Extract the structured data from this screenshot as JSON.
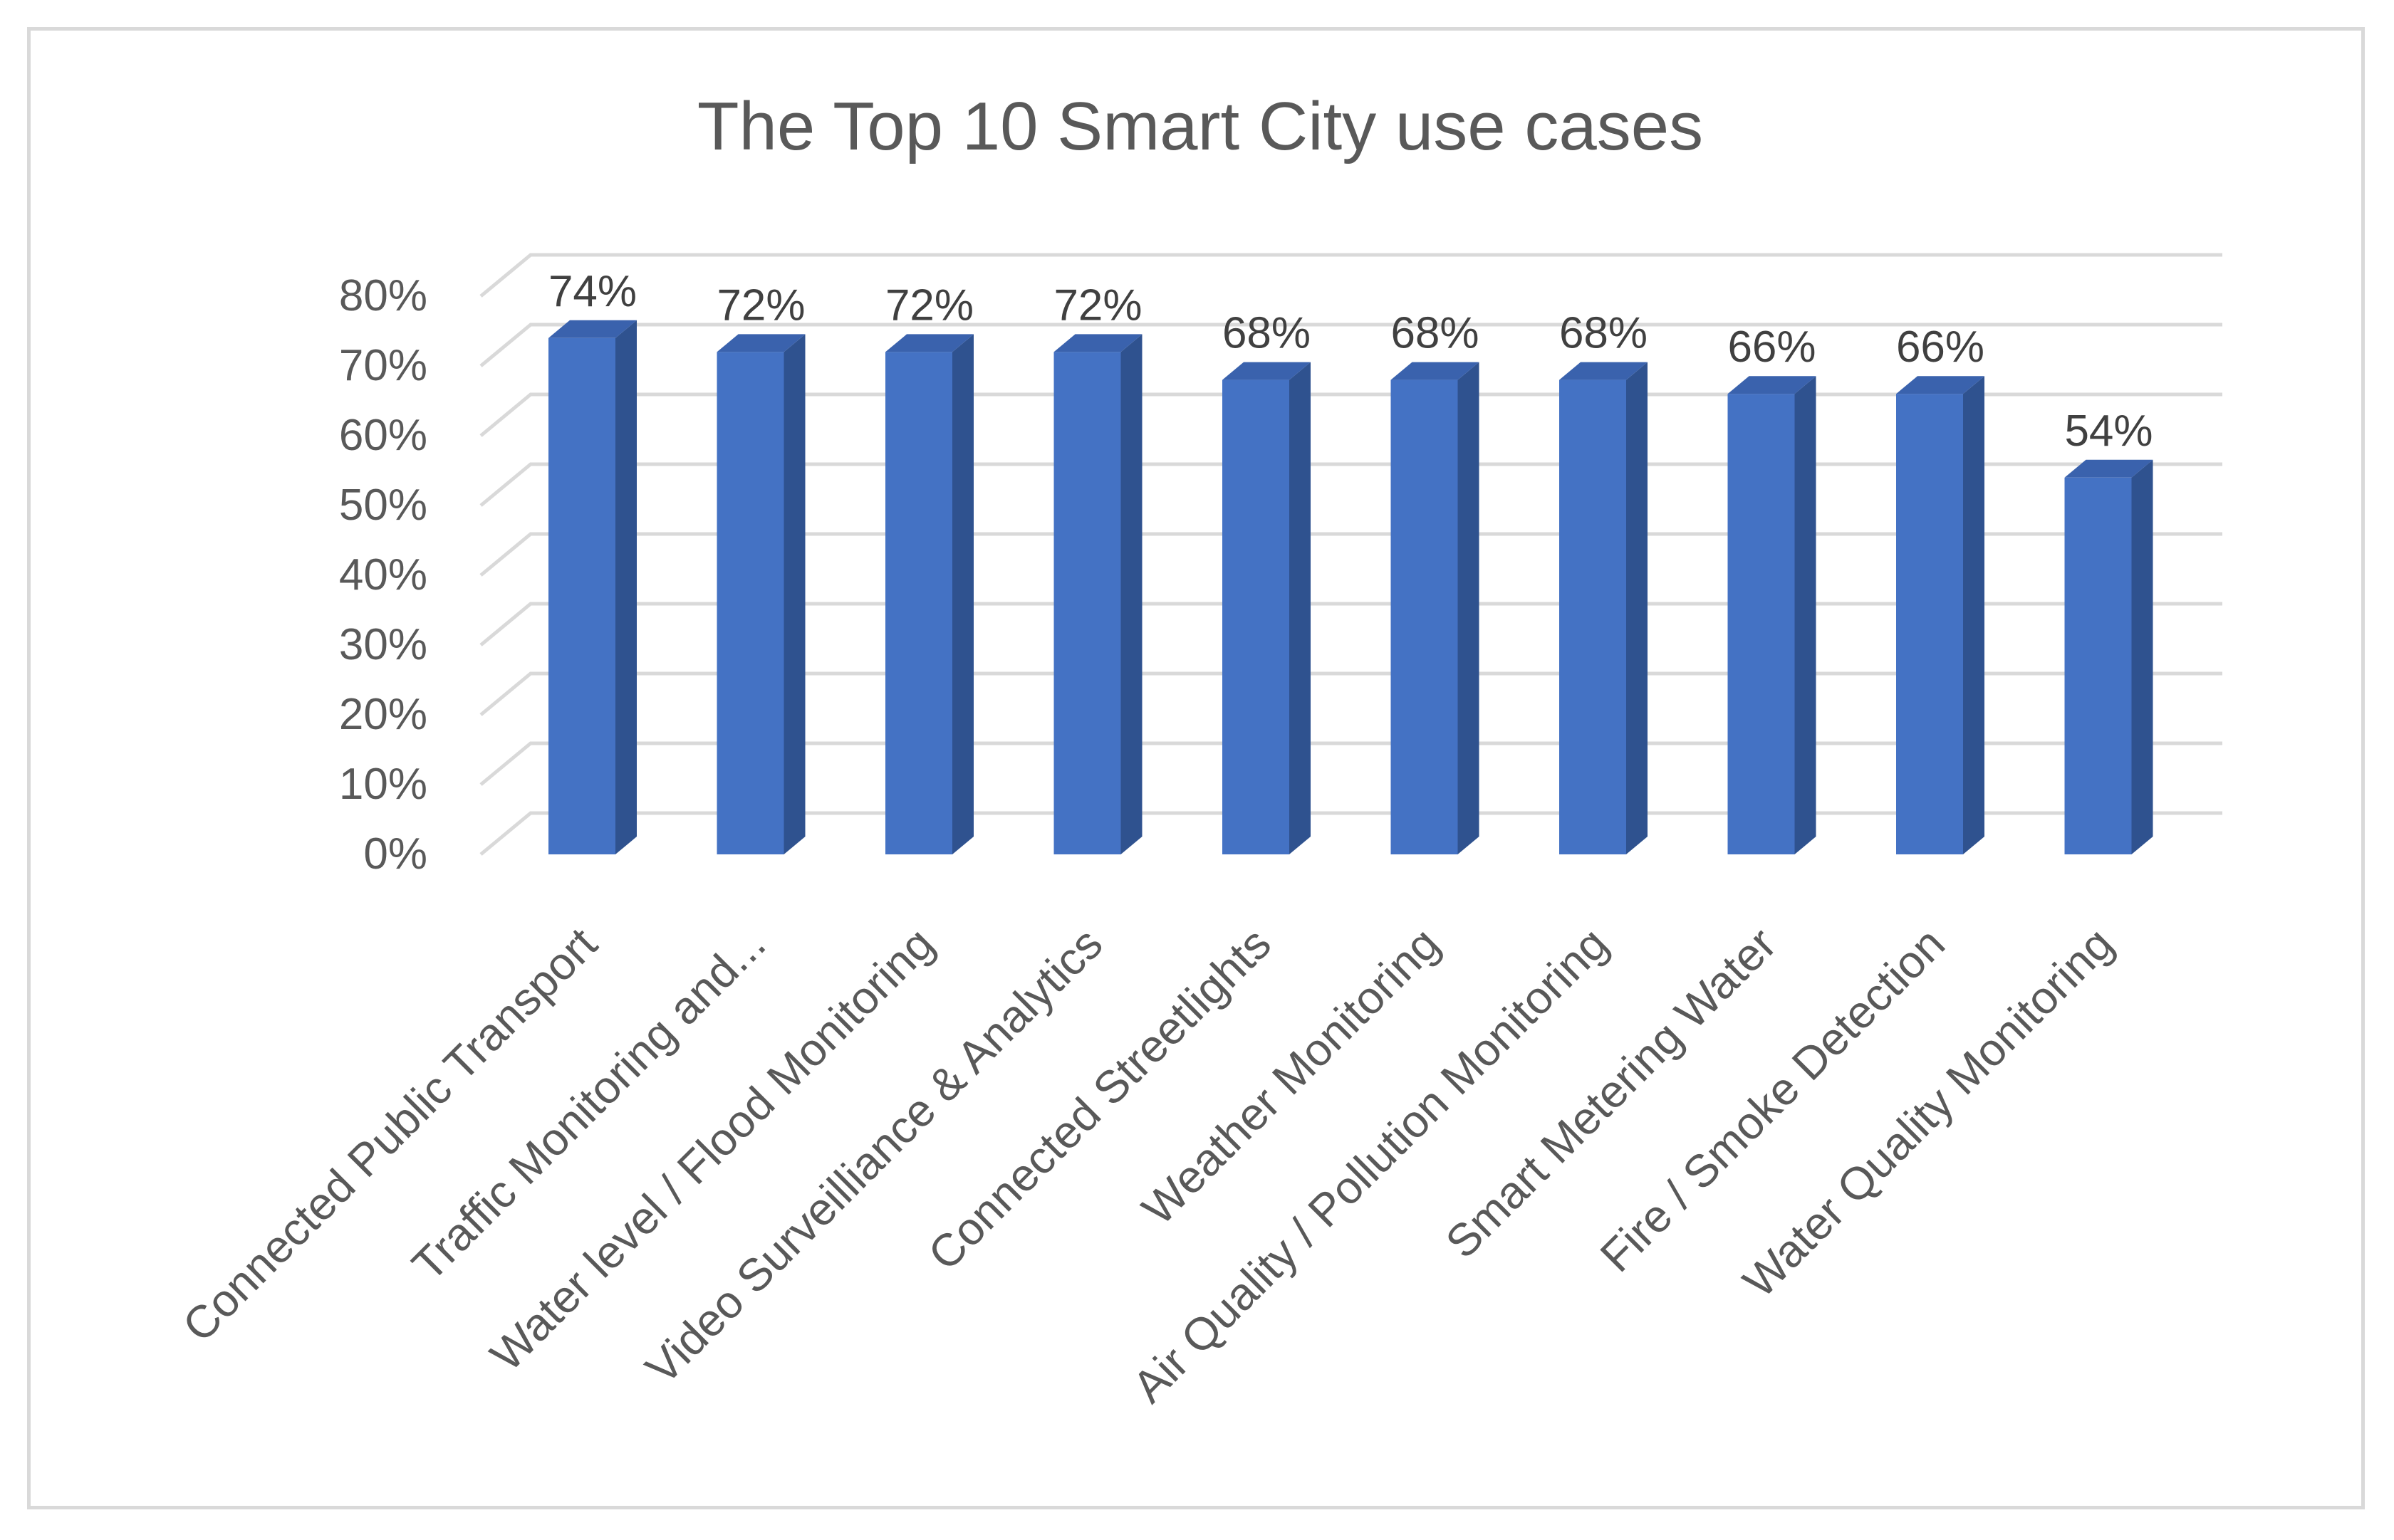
{
  "chart_data": {
    "type": "bar",
    "title": "The Top 10 Smart City use cases",
    "categories": [
      "Connected Public Transport",
      "Traffic Monitoring and...",
      "Water level / Flood Monitoring",
      "Video Surveilliance & Analytics",
      "Connected Streetlights",
      "Weather Monitoring",
      "Air Quality / Pollution Monitoring",
      "Smart Metering Water",
      "Fire / Smoke Detection",
      "Water Quality Monitoring"
    ],
    "values": [
      74,
      72,
      72,
      72,
      68,
      68,
      68,
      66,
      66,
      54
    ],
    "data_labels": [
      "74%",
      "72%",
      "72%",
      "72%",
      "68%",
      "68%",
      "68%",
      "66%",
      "66%",
      "54%"
    ],
    "y_ticks": [
      "0%",
      "10%",
      "20%",
      "30%",
      "40%",
      "50%",
      "60%",
      "70%",
      "80%"
    ],
    "ylim": [
      0,
      80
    ],
    "xlabel": "",
    "ylabel": "",
    "grid": true,
    "legend": "none",
    "colors": {
      "bar_front": "#4472c4",
      "bar_side": "#2f528f",
      "bar_top": "#3a62ad",
      "grid": "#d9d9d9",
      "text": "#595959"
    }
  }
}
